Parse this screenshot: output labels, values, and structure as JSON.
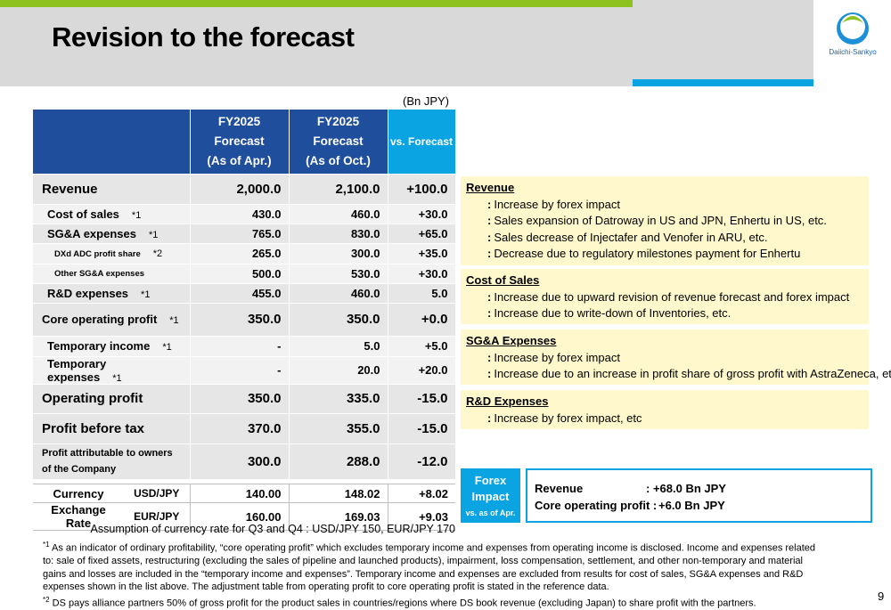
{
  "title": "Revision to the forecast",
  "logo_text": "Daiichi-Sankyo",
  "unit": "(Bn JPY)",
  "table": {
    "headers": [
      "",
      [
        "FY2025",
        "Forecast",
        "(As of Apr.)"
      ],
      [
        "FY2025",
        "Forecast",
        "(As of Oct.)"
      ],
      "vs. Forecast"
    ],
    "rows": [
      {
        "label": "Revenue",
        "note": "",
        "apr": "2,000.0",
        "oct": "2,100.0",
        "vs": "+100.0"
      },
      {
        "label": "Cost of sales",
        "note": "*1",
        "apr": "430.0",
        "oct": "460.0",
        "vs": "+30.0"
      },
      {
        "label": "SG&A expenses",
        "note": "*1",
        "apr": "765.0",
        "oct": "830.0",
        "vs": "+65.0"
      },
      {
        "label": "DXd ADC profit share",
        "note": "*2",
        "apr": "265.0",
        "oct": "300.0",
        "vs": "+35.0"
      },
      {
        "label": "Other SG&A expenses",
        "note": "",
        "apr": "500.0",
        "oct": "530.0",
        "vs": "+30.0"
      },
      {
        "label": "R&D expenses",
        "note": "*1",
        "apr": "455.0",
        "oct": "460.0",
        "vs": "5.0"
      },
      {
        "label": "Core operating profit",
        "note": "*1",
        "apr": "350.0",
        "oct": "350.0",
        "vs": "+0.0"
      },
      {
        "label": "Temporary income",
        "note": "*1",
        "apr": "-",
        "oct": "5.0",
        "vs": "+5.0"
      },
      {
        "label": "Temporary expenses",
        "note": "*1",
        "apr": "-",
        "oct": "20.0",
        "vs": "+20.0"
      },
      {
        "label": "Operating profit",
        "note": "",
        "apr": "350.0",
        "oct": "335.0",
        "vs": "-15.0"
      },
      {
        "label": "Profit before tax",
        "note": "",
        "apr": "370.0",
        "oct": "355.0",
        "vs": "-15.0"
      },
      {
        "label": [
          "Profit attributable to owners",
          "of the Company"
        ],
        "note": "",
        "apr": "300.0",
        "oct": "288.0",
        "vs": "-12.0"
      }
    ]
  },
  "currency": {
    "label": [
      "Currency",
      "Exchange Rate"
    ],
    "rows": [
      {
        "pair": "USD/JPY",
        "apr": "140.00",
        "oct": "148.02",
        "vs": "+8.02"
      },
      {
        "pair": "EUR/JPY",
        "apr": "160.00",
        "oct": "169.03",
        "vs": "+9.03"
      }
    ],
    "assumption": "Assumption of currency rate for Q3 and Q4 : USD/JPY 150, EUR/JPY 170"
  },
  "notes": [
    {
      "title": "Revenue",
      "lines": [
        "Increase by forex impact",
        "Sales expansion of Datroway in US and JPN, Enhertu in US, etc.",
        "Sales decrease of Injectafer and Venofer in ARU, etc.",
        "Decrease due to regulatory milestones payment for Enhertu"
      ]
    },
    {
      "title": "Cost of Sales",
      "lines": [
        "Increase due to upward revision of revenue forecast and forex impact",
        "Increase due to write-down of Inventories, etc."
      ]
    },
    {
      "title": "SG&A Expenses",
      "lines": [
        "Increase by forex impact",
        "Increase due to an increase in profit share of gross profit with AstraZeneca, etc."
      ]
    },
    {
      "title": "R&D Expenses",
      "lines": [
        "Increase by forex impact, etc"
      ]
    }
  ],
  "forex": {
    "label": [
      "Forex",
      "Impact",
      "vs. as of Apr."
    ],
    "revenue_label": "Revenue",
    "revenue_value": ":  +68.0 Bn JPY",
    "cop_label": "Core operating profit :",
    "cop_value": "+6.0 Bn JPY"
  },
  "footnotes": [
    {
      "mark": "*1",
      "text": " As an indicator of ordinary profitability, “core operating profit” which excludes temporary income and expenses from operating income is disclosed. Income and expenses related to: sale of fixed assets, restructuring (excluding the sales of pipeline and launched products), impairment, loss compensation, settlement, and other non-temporary and material gains and losses are included in the “temporary income and expenses”. Temporary income and expenses are excluded from results for cost of sales, SG&A expenses and R&D expenses shown in the list above. The adjustment table from operating profit to core operating profit is stated in the reference data."
    },
    {
      "mark": "*2",
      "text": " DS pays alliance partners 50% of gross profit for the product sales in countries/regions where DS book revenue (excluding Japan) to share profit with the partners."
    }
  ],
  "page_number": "9",
  "colors": {
    "navy": "#1f4e9c",
    "cyan": "#0aa4e3",
    "green": "#8dc21f",
    "note_bg": "#fff8cc"
  }
}
